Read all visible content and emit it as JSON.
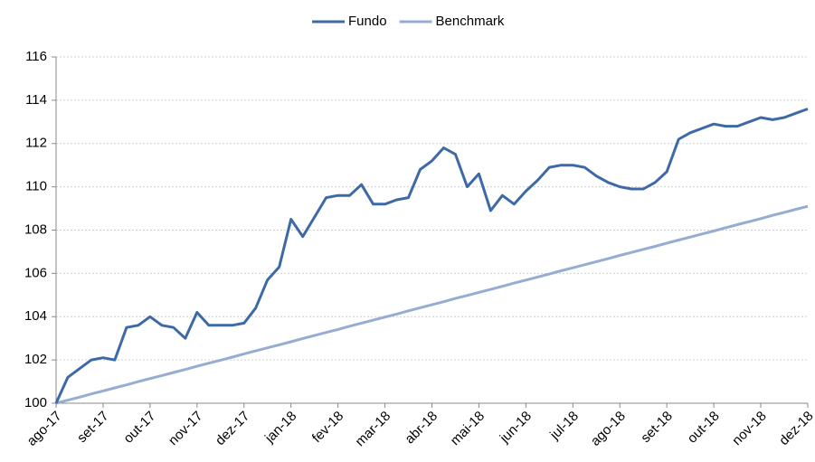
{
  "chart_data": {
    "type": "line",
    "x": [
      "ago-17",
      null,
      null,
      null,
      "set-17",
      null,
      null,
      null,
      "out-17",
      null,
      null,
      null,
      "nov-17",
      null,
      null,
      null,
      "dez-17",
      null,
      null,
      null,
      "jan-18",
      null,
      null,
      null,
      "fev-18",
      null,
      null,
      null,
      "mar-18",
      null,
      null,
      null,
      "abr-18",
      null,
      null,
      null,
      "mai-18",
      null,
      null,
      null,
      "jun-18",
      null,
      null,
      null,
      "jul-18",
      null,
      null,
      null,
      "ago-18",
      null,
      null,
      null,
      "set-18",
      null,
      null,
      null,
      "out-18",
      null,
      null,
      null,
      "nov-18",
      null,
      null,
      null,
      "dez-18"
    ],
    "series": [
      {
        "name": "Fundo",
        "color": "#3d6aa6",
        "values": [
          100.0,
          101.2,
          101.6,
          102.0,
          102.1,
          102.0,
          103.5,
          103.6,
          104.0,
          103.6,
          103.5,
          103.0,
          104.2,
          103.6,
          103.6,
          103.6,
          103.7,
          104.4,
          105.7,
          106.3,
          108.5,
          107.7,
          108.6,
          109.5,
          109.6,
          109.6,
          110.1,
          109.2,
          109.2,
          109.4,
          109.5,
          110.8,
          111.2,
          111.8,
          111.5,
          110.0,
          110.6,
          108.9,
          109.6,
          109.2,
          109.8,
          110.3,
          110.9,
          111.0,
          111.0,
          110.9,
          110.5,
          110.2,
          110.0,
          109.9,
          109.9,
          110.2,
          110.7,
          112.2,
          112.5,
          112.7,
          112.9,
          112.8,
          112.8,
          113.0,
          113.2,
          113.1,
          113.2,
          113.4,
          113.6
        ]
      },
      {
        "name": "Benchmark",
        "color": "#96acd2",
        "values": [
          100.0,
          100.14,
          100.28,
          100.43,
          100.57,
          100.71,
          100.85,
          101.0,
          101.14,
          101.28,
          101.42,
          101.56,
          101.71,
          101.85,
          101.99,
          102.13,
          102.28,
          102.42,
          102.56,
          102.7,
          102.84,
          102.99,
          103.13,
          103.27,
          103.41,
          103.56,
          103.7,
          103.84,
          103.98,
          104.12,
          104.27,
          104.41,
          104.55,
          104.69,
          104.84,
          104.98,
          105.12,
          105.26,
          105.4,
          105.55,
          105.69,
          105.83,
          105.97,
          106.12,
          106.26,
          106.4,
          106.54,
          106.68,
          106.83,
          106.97,
          107.11,
          107.25,
          107.4,
          107.54,
          107.68,
          107.82,
          107.96,
          108.11,
          108.25,
          108.39,
          108.53,
          108.68,
          108.82,
          108.96,
          109.1
        ]
      }
    ],
    "ylim": [
      100,
      116
    ],
    "yticks": [
      100,
      102,
      104,
      106,
      108,
      110,
      112,
      114,
      116
    ],
    "grid": true,
    "legend": "top"
  }
}
